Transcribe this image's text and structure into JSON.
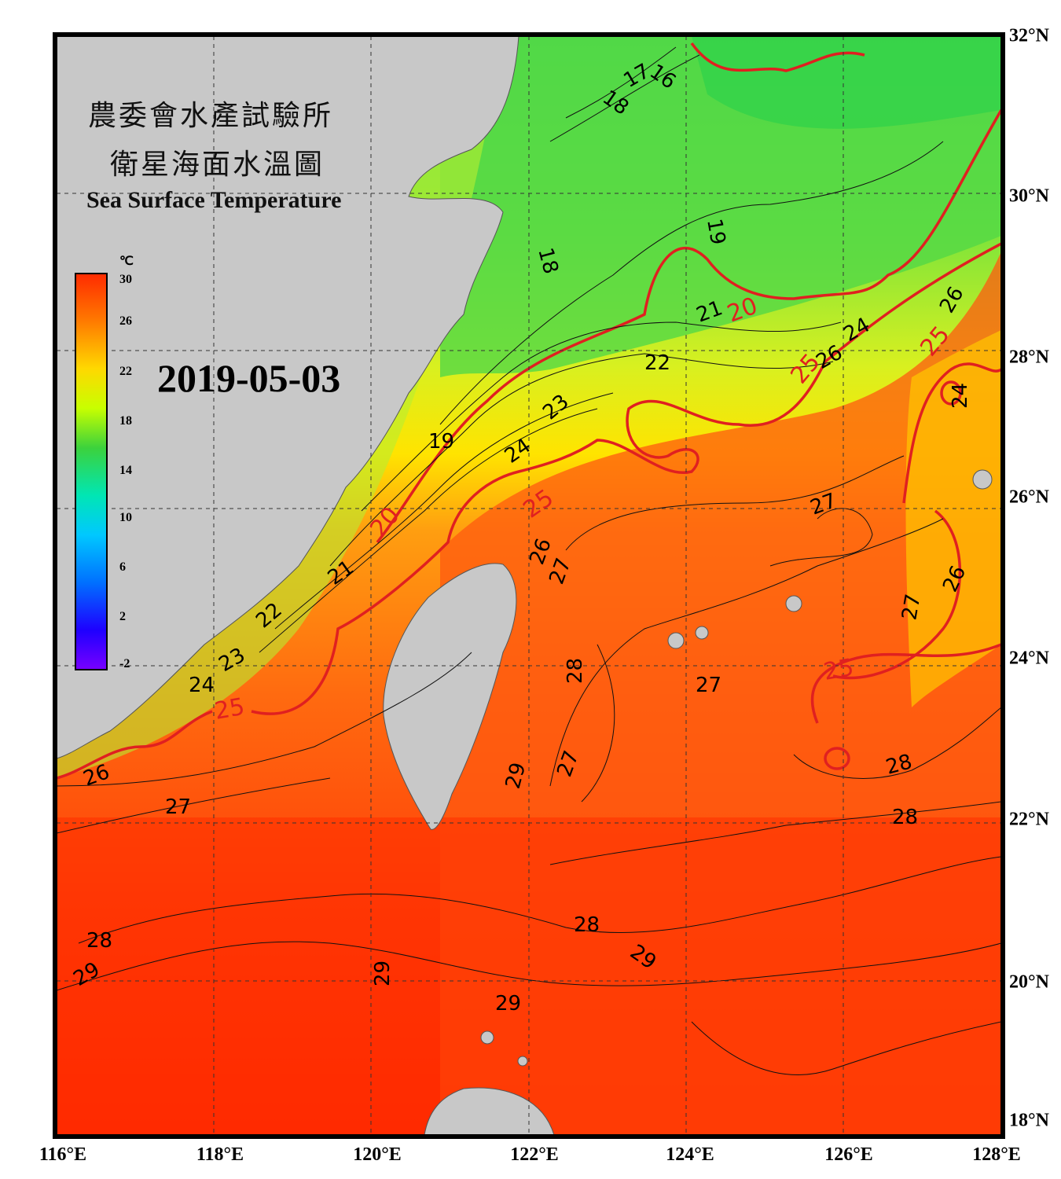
{
  "title": {
    "line1": "農委會水產試驗所",
    "line2": "衛星海面水溫圖",
    "english": "Sea Surface Temperature"
  },
  "date": "2019-05-03",
  "colorbar": {
    "unit": "℃",
    "ticks": [
      "30",
      "26",
      "22",
      "18",
      "14",
      "10",
      "6",
      "2",
      "-2"
    ],
    "colors": [
      "#ff2a00",
      "#ff7a00",
      "#ffd800",
      "#c8ff00",
      "#3cd23c",
      "#00e6b4",
      "#00c8ff",
      "#0070ff",
      "#1e00ff",
      "#7800ff"
    ]
  },
  "axes": {
    "lon_labels": [
      "116°E",
      "118°E",
      "120°E",
      "122°E",
      "124°E",
      "126°E",
      "128°E"
    ],
    "lat_labels": [
      "32°N",
      "30°N",
      "28°N",
      "26°N",
      "24°N",
      "22°N",
      "20°N",
      "18°N"
    ]
  },
  "contour_labels": {
    "black": [
      "16",
      "17",
      "18",
      "18",
      "19",
      "19",
      "21",
      "21",
      "22",
      "22",
      "23",
      "23",
      "24",
      "24",
      "24",
      "24",
      "26",
      "26",
      "26",
      "26",
      "26",
      "27",
      "27",
      "27",
      "27",
      "27",
      "27",
      "28",
      "28",
      "28",
      "28",
      "28",
      "29",
      "29",
      "29",
      "29",
      "29"
    ],
    "red": [
      "20",
      "20",
      "25",
      "25",
      "25",
      "25",
      "25"
    ]
  },
  "colors": {
    "land": "#c8c8c8",
    "isotherm_major": "#e02020",
    "isotherm_minor": "#000000",
    "warm": "#ff3c00",
    "cool": "#38d838"
  }
}
